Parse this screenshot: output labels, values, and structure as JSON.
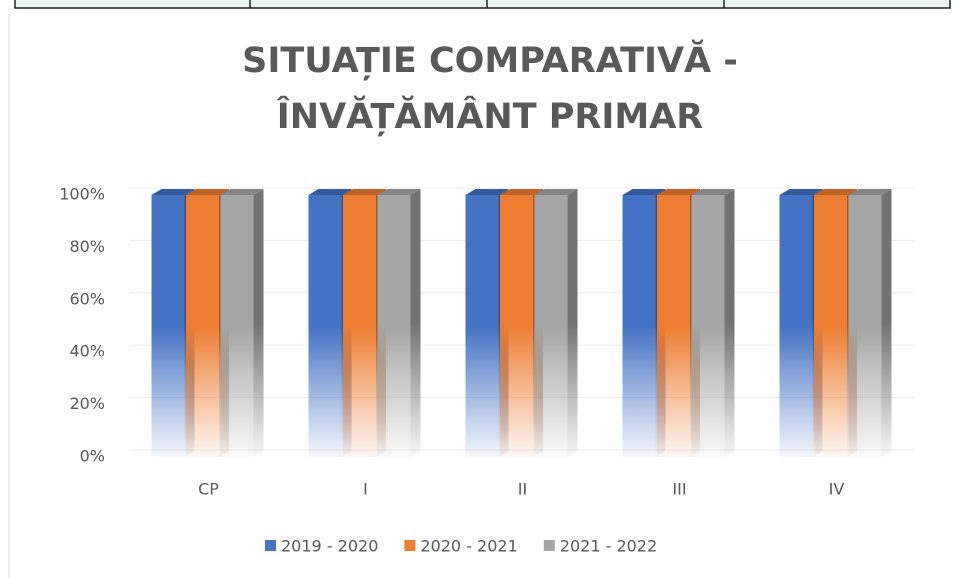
{
  "chart_data": {
    "type": "bar3d",
    "title": [
      "SITUAȚIE COMPARATIVĂ -",
      "ÎNVĂȚĂMÂNT PRIMAR"
    ],
    "categories": [
      "CP",
      "I",
      "II",
      "III",
      "IV"
    ],
    "series": [
      {
        "name": "2019 - 2020",
        "color": "#4472c4",
        "values": [
          100,
          100,
          100,
          100,
          100
        ]
      },
      {
        "name": "2020 - 2021",
        "color": "#ed7d31",
        "values": [
          100,
          100,
          100,
          100,
          100
        ]
      },
      {
        "name": "2021 - 2022",
        "color": "#a5a5a5",
        "values": [
          100,
          100,
          100,
          100,
          100
        ]
      }
    ],
    "ylim": [
      0,
      100
    ],
    "yticks": [
      {
        "value": 0,
        "label": "0%"
      },
      {
        "value": 20,
        "label": "20%"
      },
      {
        "value": 40,
        "label": "40%"
      },
      {
        "value": 60,
        "label": "60%"
      },
      {
        "value": 80,
        "label": "80%"
      },
      {
        "value": 100,
        "label": "100%"
      }
    ],
    "grid": true,
    "legend": "bottom"
  }
}
